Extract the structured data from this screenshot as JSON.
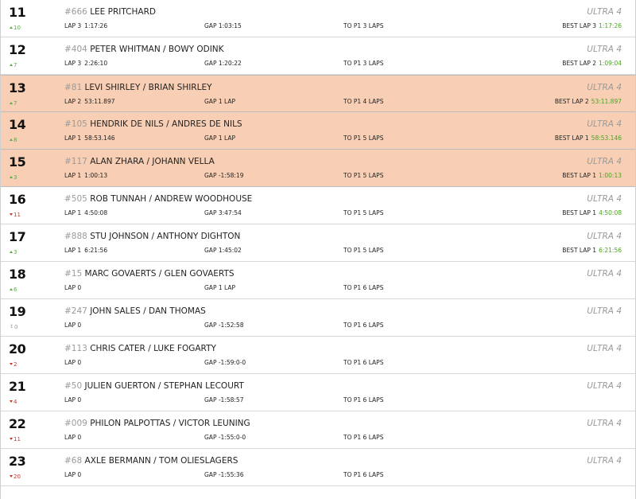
{
  "colors": {
    "highlight_row": "#f8cfb4",
    "position_up": "#5aa94a",
    "position_down": "#c0392b",
    "best_time": "#4aa321"
  },
  "rows": [
    {
      "pos": "11",
      "delta_dir": "up",
      "delta": "10",
      "num": "#666",
      "name": "LEE PRITCHARD",
      "lap_label": "LAP 3",
      "lap_time": "1:17:26",
      "gap": "GAP 1:03:15",
      "to_p1": "TO P1 3 LAPS",
      "class": "ULTRA 4",
      "best_label": "BEST LAP 3",
      "best_time": "1:17:26",
      "highlight": false
    },
    {
      "pos": "12",
      "delta_dir": "up",
      "delta": "7",
      "num": "#404",
      "name": "PETER WHITMAN / BOWY ODINK",
      "lap_label": "LAP 3",
      "lap_time": "2:26:10",
      "gap": "GAP 1:20:22",
      "to_p1": "TO P1 3 LAPS",
      "class": "ULTRA 4",
      "best_label": "BEST LAP 2",
      "best_time": "1:09:04",
      "highlight": false
    },
    {
      "pos": "13",
      "delta_dir": "up",
      "delta": "7",
      "num": "#81",
      "name": "LEVI SHIRLEY / BRIAN SHIRLEY",
      "lap_label": "LAP 2",
      "lap_time": "53:11.897",
      "gap": "GAP 1 LAP",
      "to_p1": "TO P1 4 LAPS",
      "class": "ULTRA 4",
      "best_label": "BEST LAP 2",
      "best_time": "53:11.897",
      "highlight": true
    },
    {
      "pos": "14",
      "delta_dir": "up",
      "delta": "8",
      "num": "#105",
      "name": "HENDRIK DE NILS / ANDRES DE NILS",
      "lap_label": "LAP 1",
      "lap_time": "58:53.146",
      "gap": "GAP 1 LAP",
      "to_p1": "TO P1 5 LAPS",
      "class": "ULTRA 4",
      "best_label": "BEST LAP 1",
      "best_time": "58:53.146",
      "highlight": true
    },
    {
      "pos": "15",
      "delta_dir": "up",
      "delta": "3",
      "num": "#117",
      "name": "ALAN ZHARA / JOHANN VELLA",
      "lap_label": "LAP 1",
      "lap_time": "1:00:13",
      "gap": "GAP -1:58:19",
      "to_p1": "TO P1 5 LAPS",
      "class": "ULTRA 4",
      "best_label": "BEST LAP 1",
      "best_time": "1:00:13",
      "highlight": true
    },
    {
      "pos": "16",
      "delta_dir": "down",
      "delta": "11",
      "num": "#505",
      "name": "ROB TUNNAH / ANDREW WOODHOUSE",
      "lap_label": "LAP 1",
      "lap_time": "4:50:08",
      "gap": "GAP 3:47:54",
      "to_p1": "TO P1 5 LAPS",
      "class": "ULTRA 4",
      "best_label": "BEST LAP 1",
      "best_time": "4:50:08",
      "highlight": false
    },
    {
      "pos": "17",
      "delta_dir": "up",
      "delta": "3",
      "num": "#888",
      "name": "STU JOHNSON / ANTHONY DIGHTON",
      "lap_label": "LAP 1",
      "lap_time": "6:21:56",
      "gap": "GAP 1:45:02",
      "to_p1": "TO P1 5 LAPS",
      "class": "ULTRA 4",
      "best_label": "BEST LAP 1",
      "best_time": "6:21:56",
      "highlight": false
    },
    {
      "pos": "18",
      "delta_dir": "up",
      "delta": "6",
      "num": "#15",
      "name": "MARC GOVAERTS / GLEN GOVAERTS",
      "lap_label": "LAP 0",
      "lap_time": "",
      "gap": "GAP 1 LAP",
      "to_p1": "TO P1 6 LAPS",
      "class": "ULTRA 4",
      "best_label": "",
      "best_time": "",
      "highlight": false
    },
    {
      "pos": "19",
      "delta_dir": "same",
      "delta": "0",
      "num": "#247",
      "name": "JOHN SALES / DAN THOMAS",
      "lap_label": "LAP 0",
      "lap_time": "",
      "gap": "GAP -1:52:58",
      "to_p1": "TO P1 6 LAPS",
      "class": "ULTRA 4",
      "best_label": "",
      "best_time": "",
      "highlight": false
    },
    {
      "pos": "20",
      "delta_dir": "down",
      "delta": "2",
      "num": "#113",
      "name": "CHRIS CATER / LUKE FOGARTY",
      "lap_label": "LAP 0",
      "lap_time": "",
      "gap": "GAP -1:59:0-0",
      "to_p1": "TO P1 6 LAPS",
      "class": "ULTRA 4",
      "best_label": "",
      "best_time": "",
      "highlight": false
    },
    {
      "pos": "21",
      "delta_dir": "down",
      "delta": "4",
      "num": "#50",
      "name": "JULIEN GUERTON / STEPHAN LECOURT",
      "lap_label": "LAP 0",
      "lap_time": "",
      "gap": "GAP -1:58:57",
      "to_p1": "TO P1 6 LAPS",
      "class": "ULTRA 4",
      "best_label": "",
      "best_time": "",
      "highlight": false
    },
    {
      "pos": "22",
      "delta_dir": "down",
      "delta": "11",
      "num": "#009",
      "name": "PHILON PALPOTTAS / VICTOR LEUNING",
      "lap_label": "LAP 0",
      "lap_time": "",
      "gap": "GAP -1:55:0-0",
      "to_p1": "TO P1 6 LAPS",
      "class": "ULTRA 4",
      "best_label": "",
      "best_time": "",
      "highlight": false
    },
    {
      "pos": "23",
      "delta_dir": "down",
      "delta": "20",
      "num": "#68",
      "name": "AXLE BERMANN / TOM OLIESLAGERS",
      "lap_label": "LAP 0",
      "lap_time": "",
      "gap": "GAP -1:55:36",
      "to_p1": "TO P1 6 LAPS",
      "class": "ULTRA 4",
      "best_label": "",
      "best_time": "",
      "highlight": false
    }
  ]
}
